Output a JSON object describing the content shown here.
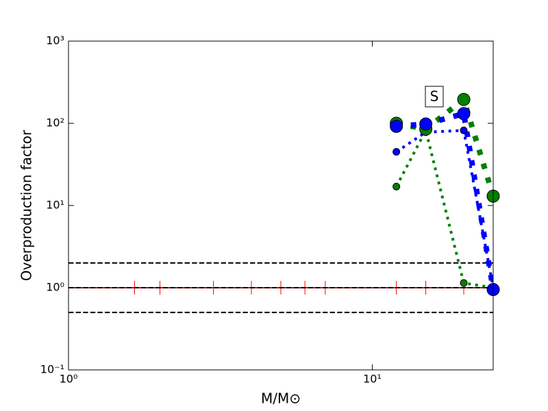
{
  "chart_data": {
    "type": "line",
    "xscale": "log",
    "yscale": "log",
    "xlabel": "M/M⊙",
    "ylabel": "Overproduction factor",
    "xlim": [
      1,
      25
    ],
    "ylim": [
      0.1,
      1000
    ],
    "xticks": [
      {
        "value": 1,
        "label": "10⁰"
      },
      {
        "value": 10,
        "label": "10¹"
      }
    ],
    "yticks": [
      {
        "value": 0.1,
        "label": "10⁻¹"
      },
      {
        "value": 1,
        "label": "10⁰"
      },
      {
        "value": 10,
        "label": "10¹"
      },
      {
        "value": 100,
        "label": "10²"
      },
      {
        "value": 1000,
        "label": "10³"
      }
    ],
    "hlines": {
      "values": [
        2,
        1,
        0.5
      ],
      "color": "#000000",
      "linestyle": "dashed"
    },
    "series": [
      {
        "color": "#ff0000",
        "marker": "|",
        "linestyle": "solid",
        "x": [
          1,
          1.65,
          2,
          3,
          4,
          5,
          6,
          7,
          12,
          15,
          20,
          25
        ],
        "values": [
          1,
          1,
          1,
          1,
          1,
          1,
          1,
          1,
          1,
          1,
          1,
          1
        ]
      },
      {
        "color": "#008000",
        "marker": "o",
        "linestyle": "dotted",
        "x": [
          12,
          15,
          20,
          25
        ],
        "values": [
          17,
          82,
          1.14,
          1
        ]
      },
      {
        "color": "#0000ff",
        "marker": "o",
        "linestyle": "dotted",
        "x": [
          12,
          15,
          20,
          25
        ],
        "values": [
          45,
          78,
          82,
          1
        ]
      },
      {
        "color": "#008000",
        "marker": "o",
        "linestyle": "dotted",
        "x": [
          12,
          15,
          20,
          25
        ],
        "values": [
          100,
          85,
          195,
          13
        ]
      },
      {
        "color": "#0000ff",
        "marker": "o",
        "linestyle": "dotted",
        "x": [
          12,
          15,
          20,
          25
        ],
        "values": [
          92,
          98,
          131,
          0.95
        ]
      }
    ],
    "annotation": "S"
  }
}
